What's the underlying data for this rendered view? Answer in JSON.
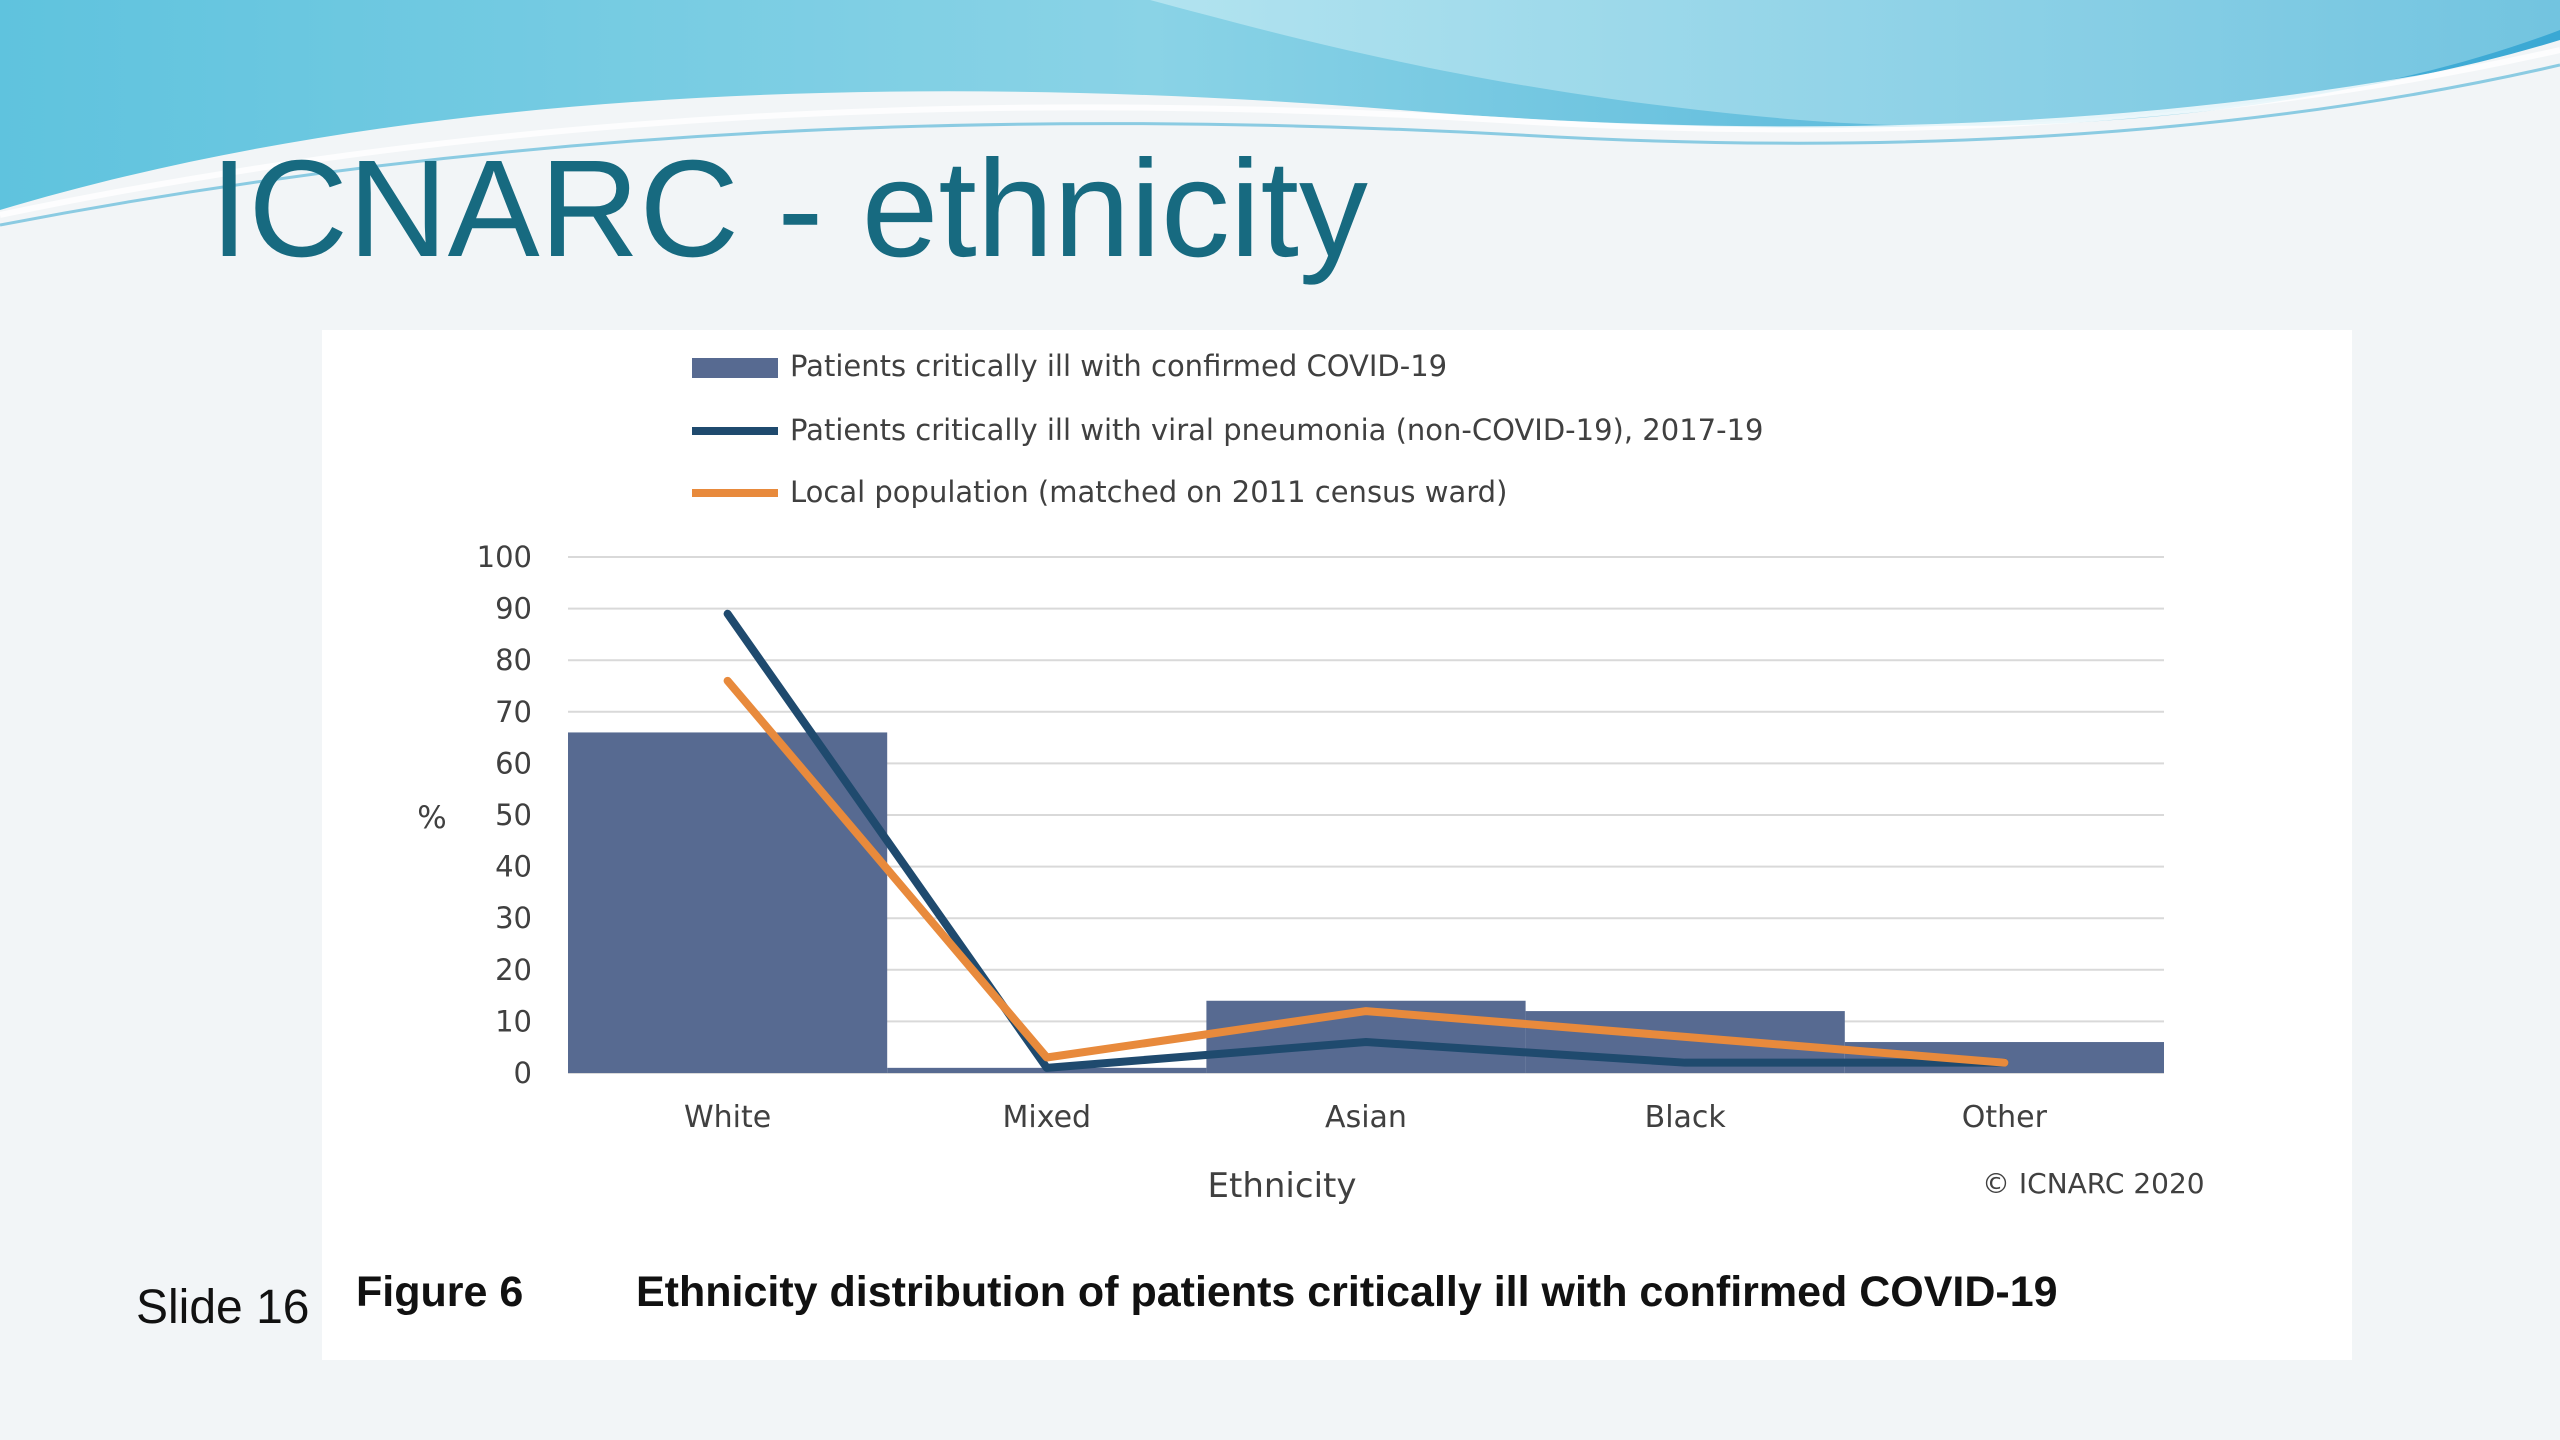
{
  "slide": {
    "title": "ICNARC - ethnicity",
    "slide_number": "Slide 16",
    "figure_label": "Figure 6",
    "figure_caption": "Ethnicity distribution of patients critically ill with confirmed COVID-19",
    "credit": "© ICNARC 2020"
  },
  "colors": {
    "title": "#176a80",
    "bars": "#576a91",
    "viral_pneumonia_line": "#1f4a6e",
    "local_population_line": "#e88a3c",
    "gridlines": "#d9d9d9"
  },
  "chart_data": {
    "type": "bar",
    "categories": [
      "White",
      "Mixed",
      "Asian",
      "Black",
      "Other"
    ],
    "xlabel": "Ethnicity",
    "ylabel": "%",
    "ylim": [
      0,
      100
    ],
    "yticks": [
      0,
      10,
      20,
      30,
      40,
      50,
      60,
      70,
      80,
      90,
      100
    ],
    "grid": true,
    "legend_position": "top",
    "series": [
      {
        "name": "Patients critically ill with confirmed COVID-19",
        "type": "bar",
        "values": [
          66,
          1,
          14,
          12,
          6
        ]
      },
      {
        "name": "Patients critically ill with viral pneumonia (non-COVID-19), 2017-19",
        "type": "line",
        "values": [
          89,
          1,
          6,
          2,
          2
        ]
      },
      {
        "name": "Local population (matched on 2011 census ward)",
        "type": "line",
        "values": [
          76,
          3,
          12,
          7,
          2
        ]
      }
    ]
  }
}
